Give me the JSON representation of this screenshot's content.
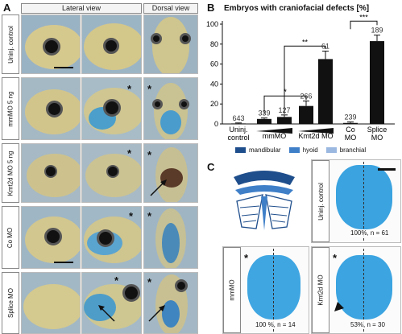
{
  "panel_a": {
    "letter": "A",
    "header_lateral": "Lateral view",
    "header_dorsal": "Dorsal view",
    "row_labels": [
      "Uninj. control",
      "mmMO 5 ng",
      "Kmt2d MO 5 ng",
      "Co MO",
      "Splice MO"
    ],
    "asterisk": "*"
  },
  "panel_b": {
    "letter": "B",
    "title": "Embryos with craniofacial defects [%]"
  },
  "chart_data": {
    "type": "bar",
    "title": "Embryos with craniofacial defects [%]",
    "categories": [
      "Uninj. control",
      "mmMO (low)",
      "mmMO (high)",
      "Kmt2d MO (low)",
      "Kmt2d MO (high)",
      "Co MO",
      "Splice MO"
    ],
    "values": [
      0.5,
      5,
      7,
      18,
      65,
      1,
      83
    ],
    "errors": [
      0.5,
      1,
      2,
      5,
      8,
      1,
      6
    ],
    "n_labels": [
      "643",
      "339",
      "127",
      "266",
      "61",
      "239",
      "189"
    ],
    "ylim": [
      0,
      100
    ],
    "yticks": [
      "0",
      "20",
      "40",
      "60",
      "80",
      "100"
    ],
    "x_group_labels": [
      {
        "line1": "Uninj.",
        "line2": "control"
      },
      {
        "line1": "mmMO",
        "line2": ""
      },
      {
        "line1": "Kmt2d MO",
        "line2": ""
      },
      {
        "line1": "Co",
        "line2": "MO"
      },
      {
        "line1": "Splice",
        "line2": "MO"
      }
    ],
    "significance": [
      "*",
      "**",
      "***"
    ]
  },
  "panel_c": {
    "letter": "C",
    "legend": [
      {
        "label": "mandibular",
        "color": "#1f4e8c"
      },
      {
        "label": "hyoid",
        "color": "#3f7fc8"
      },
      {
        "label": "branchial",
        "color": "#9ab8e0"
      }
    ],
    "labels": {
      "uninj": "Uninj. control",
      "mmmo": "mmMO",
      "kmt2d": "Kmt2d MO"
    },
    "captions": {
      "uninj": "100%, n = 61",
      "mmmo": "100 %, n = 14",
      "kmt2d": "53%, n = 30"
    },
    "asterisk": "*"
  }
}
